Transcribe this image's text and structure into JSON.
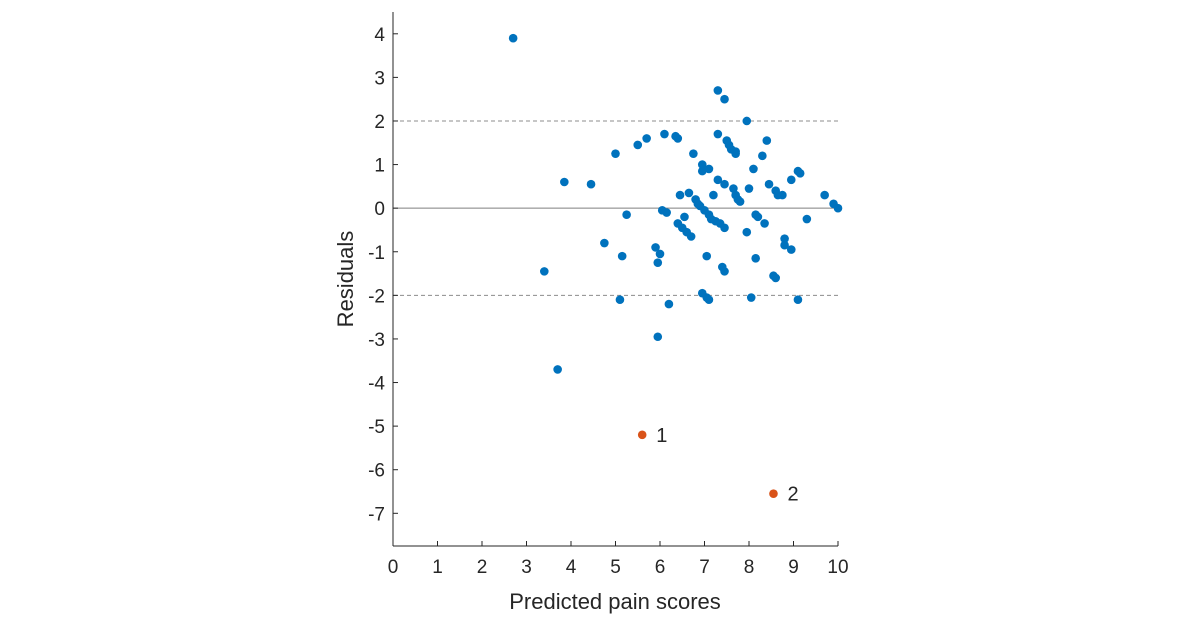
{
  "chart_data": {
    "type": "scatter",
    "title": "",
    "xlabel": "Predicted pain scores",
    "ylabel": "Residuals",
    "xlim": [
      0,
      10
    ],
    "ylim": [
      -7.75,
      4.5
    ],
    "xticks": [
      "0",
      "1",
      "2",
      "3",
      "4",
      "5",
      "6",
      "7",
      "8",
      "9",
      "10"
    ],
    "yticks": [
      "4",
      "3",
      "2",
      "1",
      "0",
      "-1",
      "-2",
      "-3",
      "-4",
      "-5",
      "-6",
      "-7"
    ],
    "grid": false,
    "reference_lines": [
      {
        "y": 2,
        "style": "dashed"
      },
      {
        "y": 0,
        "style": "solid"
      },
      {
        "y": -2,
        "style": "dashed"
      }
    ],
    "series": [
      {
        "color": "#0072BD",
        "points": [
          [
            2.7,
            3.9
          ],
          [
            3.4,
            -1.45
          ],
          [
            3.7,
            -3.7
          ],
          [
            3.85,
            0.6
          ],
          [
            4.45,
            0.55
          ],
          [
            4.75,
            -0.8
          ],
          [
            5.0,
            1.25
          ],
          [
            5.1,
            -2.1
          ],
          [
            5.15,
            -1.1
          ],
          [
            5.25,
            -0.15
          ],
          [
            5.5,
            1.45
          ],
          [
            5.7,
            1.6
          ],
          [
            5.9,
            -0.9
          ],
          [
            5.95,
            -1.25
          ],
          [
            5.95,
            -2.95
          ],
          [
            6.0,
            -1.05
          ],
          [
            6.05,
            -0.05
          ],
          [
            6.1,
            1.7
          ],
          [
            6.15,
            -0.1
          ],
          [
            6.2,
            -2.2
          ],
          [
            6.35,
            1.65
          ],
          [
            6.4,
            1.6
          ],
          [
            6.4,
            -0.35
          ],
          [
            6.45,
            0.3
          ],
          [
            6.5,
            -0.45
          ],
          [
            6.55,
            -0.2
          ],
          [
            6.6,
            -0.55
          ],
          [
            6.65,
            0.35
          ],
          [
            6.7,
            -0.65
          ],
          [
            6.75,
            1.25
          ],
          [
            6.8,
            0.2
          ],
          [
            6.85,
            0.1
          ],
          [
            6.9,
            0.05
          ],
          [
            6.95,
            0.85
          ],
          [
            6.95,
            1.0
          ],
          [
            6.95,
            -1.95
          ],
          [
            7.0,
            -0.05
          ],
          [
            7.05,
            -2.05
          ],
          [
            7.05,
            -1.1
          ],
          [
            7.1,
            -0.15
          ],
          [
            7.1,
            0.9
          ],
          [
            7.1,
            -2.1
          ],
          [
            7.15,
            -0.25
          ],
          [
            7.2,
            0.3
          ],
          [
            7.25,
            -0.3
          ],
          [
            7.3,
            2.7
          ],
          [
            7.3,
            1.7
          ],
          [
            7.3,
            0.65
          ],
          [
            7.35,
            -0.35
          ],
          [
            7.4,
            -1.35
          ],
          [
            7.45,
            2.5
          ],
          [
            7.45,
            0.55
          ],
          [
            7.45,
            -0.45
          ],
          [
            7.45,
            -1.45
          ],
          [
            7.5,
            1.55
          ],
          [
            7.55,
            1.45
          ],
          [
            7.6,
            1.35
          ],
          [
            7.65,
            0.45
          ],
          [
            7.7,
            1.3
          ],
          [
            7.7,
            0.3
          ],
          [
            7.7,
            1.25
          ],
          [
            7.75,
            0.2
          ],
          [
            7.8,
            0.15
          ],
          [
            7.95,
            2.0
          ],
          [
            7.95,
            -0.55
          ],
          [
            8.0,
            0.45
          ],
          [
            8.05,
            -2.05
          ],
          [
            8.1,
            0.9
          ],
          [
            8.15,
            -1.15
          ],
          [
            8.15,
            -0.15
          ],
          [
            8.2,
            -0.2
          ],
          [
            8.3,
            1.2
          ],
          [
            8.35,
            -0.35
          ],
          [
            8.4,
            1.55
          ],
          [
            8.45,
            0.55
          ],
          [
            8.55,
            -1.55
          ],
          [
            8.6,
            0.4
          ],
          [
            8.6,
            -1.6
          ],
          [
            8.65,
            0.3
          ],
          [
            8.75,
            0.3
          ],
          [
            8.8,
            -0.7
          ],
          [
            8.8,
            -0.85
          ],
          [
            8.95,
            0.65
          ],
          [
            8.95,
            -0.95
          ],
          [
            9.1,
            0.85
          ],
          [
            9.1,
            -2.1
          ],
          [
            9.15,
            0.8
          ],
          [
            9.3,
            -0.25
          ],
          [
            9.7,
            0.3
          ],
          [
            9.9,
            0.1
          ],
          [
            10.0,
            0.0
          ]
        ]
      },
      {
        "color": "#D95319",
        "points": [
          [
            5.6,
            -5.2
          ],
          [
            8.55,
            -6.55
          ]
        ],
        "labels": [
          "1",
          "2"
        ]
      }
    ]
  }
}
